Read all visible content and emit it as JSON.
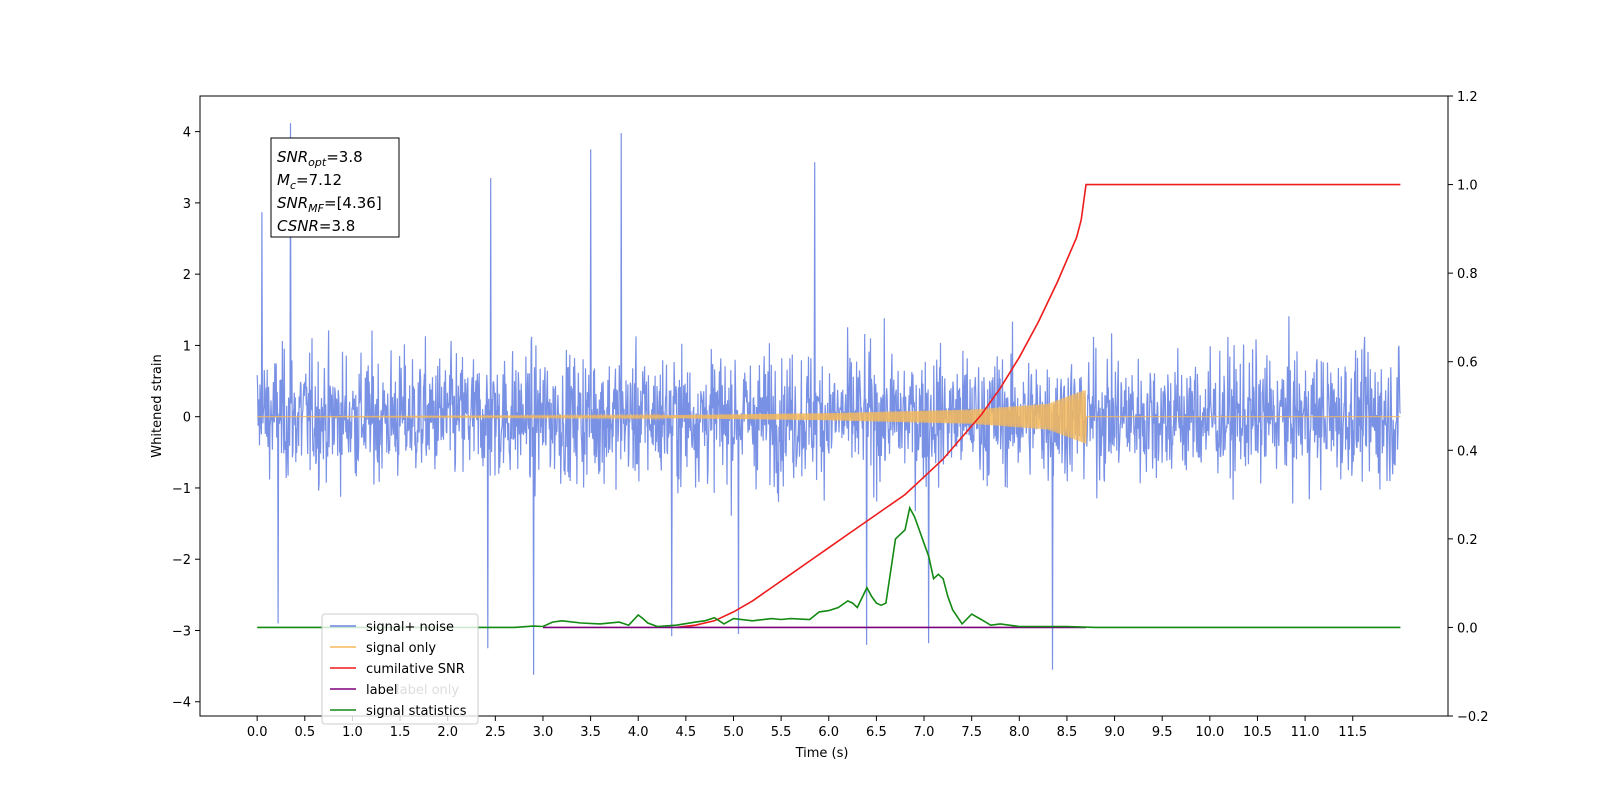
{
  "chart_data": {
    "type": "line",
    "title": "",
    "xlabel": "Time (s)",
    "ylabel_left": "Whitened strain",
    "ylabel_right": "",
    "xlim": [
      -0.6,
      12.5
    ],
    "ylim_left": [
      -4.2,
      4.5
    ],
    "ylim_right": [
      -0.2,
      1.2
    ],
    "x_ticks": [
      "0.0",
      "0.5",
      "1.0",
      "1.5",
      "2.0",
      "2.5",
      "3.0",
      "3.5",
      "4.0",
      "4.5",
      "5.0",
      "5.5",
      "6.0",
      "6.5",
      "7.0",
      "7.5",
      "8.0",
      "8.5",
      "9.0",
      "9.5",
      "10.0",
      "10.5",
      "11.0",
      "11.5"
    ],
    "y_ticks_left": [
      -4,
      -3,
      -2,
      -1,
      0,
      1,
      2,
      3,
      4
    ],
    "y_ticks_left_labels": [
      "−4",
      "−3",
      "−2",
      "−1",
      "0",
      "1",
      "2",
      "3",
      "4"
    ],
    "y_ticks_right": [
      -0.2,
      0.0,
      0.2,
      0.4,
      0.6,
      0.8,
      1.0,
      1.2
    ],
    "y_ticks_right_labels": [
      "−0.2",
      "0.0",
      "0.2",
      "0.4",
      "0.6",
      "0.8",
      "1.0",
      "1.2"
    ],
    "grid": false,
    "legend_position": "lower-left",
    "series": [
      {
        "name": "signal+ noise",
        "axis": "left",
        "color": "#6a85e2",
        "kind": "noise",
        "x_range": [
          0.0,
          12.0
        ],
        "typical_amplitude": [
          -1.6,
          1.7
        ],
        "peaks": [
          {
            "x": 0.35,
            "y": 4.12
          },
          {
            "x": 3.82,
            "y": 3.98
          },
          {
            "x": 3.5,
            "y": 3.75
          },
          {
            "x": 5.85,
            "y": 3.57
          },
          {
            "x": 2.45,
            "y": 3.35
          },
          {
            "x": 0.05,
            "y": 2.87
          },
          {
            "x": 2.9,
            "y": -3.62
          },
          {
            "x": 2.42,
            "y": -3.25
          },
          {
            "x": 6.4,
            "y": -3.2
          },
          {
            "x": 7.05,
            "y": -3.18
          },
          {
            "x": 8.35,
            "y": -3.55
          },
          {
            "x": 4.35,
            "y": -3.08
          },
          {
            "x": 5.05,
            "y": -3.05
          },
          {
            "x": 0.22,
            "y": -2.9
          }
        ]
      },
      {
        "name": "signal only",
        "axis": "left",
        "color": "#f5b95a",
        "kind": "chirp",
        "x_range": [
          0.0,
          12.0
        ],
        "chirp_end": 8.7,
        "envelope_at": [
          [
            0.0,
            0.0
          ],
          [
            4.0,
            0.015
          ],
          [
            6.0,
            0.05
          ],
          [
            7.5,
            0.1
          ],
          [
            8.3,
            0.18
          ],
          [
            8.7,
            0.38
          ]
        ]
      },
      {
        "name": "cumilative SNR",
        "axis": "right",
        "color": "#ee1c1c",
        "kind": "line",
        "x": [
          4.4,
          4.6,
          4.8,
          5.0,
          5.2,
          5.4,
          5.6,
          5.8,
          6.0,
          6.2,
          6.4,
          6.6,
          6.8,
          7.0,
          7.2,
          7.4,
          7.6,
          7.8,
          8.0,
          8.2,
          8.4,
          8.5,
          8.6,
          8.65,
          8.7,
          9.0,
          10.0,
          11.0,
          12.0
        ],
        "y": [
          0.0,
          0.005,
          0.015,
          0.035,
          0.06,
          0.09,
          0.12,
          0.15,
          0.18,
          0.21,
          0.24,
          0.27,
          0.3,
          0.34,
          0.38,
          0.43,
          0.48,
          0.54,
          0.61,
          0.69,
          0.78,
          0.83,
          0.88,
          0.92,
          1.0,
          1.0,
          1.0,
          1.0,
          1.0
        ]
      },
      {
        "name": "label",
        "axis": "right",
        "color": "#7b007b",
        "kind": "line",
        "x": [
          3.0,
          8.7
        ],
        "y": [
          0.0,
          0.0
        ]
      },
      {
        "name": "signal statistics",
        "axis": "right",
        "color": "#138a13",
        "kind": "line",
        "x": [
          0.0,
          2.7,
          2.9,
          3.0,
          3.1,
          3.2,
          3.4,
          3.6,
          3.8,
          3.9,
          4.0,
          4.05,
          4.1,
          4.2,
          4.4,
          4.6,
          4.7,
          4.8,
          4.9,
          5.0,
          5.2,
          5.4,
          5.5,
          5.6,
          5.8,
          5.9,
          6.0,
          6.1,
          6.2,
          6.25,
          6.3,
          6.4,
          6.45,
          6.5,
          6.55,
          6.6,
          6.7,
          6.75,
          6.8,
          6.85,
          6.9,
          6.95,
          7.0,
          7.05,
          7.1,
          7.15,
          7.2,
          7.25,
          7.3,
          7.4,
          7.5,
          7.6,
          7.7,
          7.8,
          8.0,
          8.5,
          8.8,
          12.0
        ],
        "y": [
          0.0,
          0.0,
          0.003,
          0.002,
          0.012,
          0.015,
          0.01,
          0.008,
          0.012,
          0.005,
          0.028,
          0.02,
          0.01,
          0.002,
          0.005,
          0.012,
          0.015,
          0.022,
          0.008,
          0.02,
          0.015,
          0.02,
          0.018,
          0.02,
          0.018,
          0.035,
          0.038,
          0.045,
          0.06,
          0.055,
          0.045,
          0.09,
          0.07,
          0.055,
          0.05,
          0.055,
          0.2,
          0.21,
          0.22,
          0.27,
          0.25,
          0.22,
          0.19,
          0.16,
          0.11,
          0.12,
          0.11,
          0.07,
          0.04,
          0.008,
          0.03,
          0.018,
          0.005,
          0.008,
          0.002,
          0.002,
          0.0,
          0.0
        ]
      }
    ],
    "legend_entries": [
      "signal+ noise",
      "signal only",
      "cumilative SNR",
      "label",
      "signal statistics"
    ],
    "legend_hidden_text": "signal only",
    "legend_hidden_text_2": "signal statistics",
    "legend_hidden_text_3": "label only",
    "annotation": {
      "lines": [
        {
          "name": "SNR",
          "sub": "opt",
          "value": "=3.8"
        },
        {
          "name": "M",
          "sub": "c",
          "value": "=7.12"
        },
        {
          "name": "SNR",
          "sub": "MF",
          "value": "=[4.36]"
        },
        {
          "name": "CSNR",
          "sub": "",
          "value": "=3.8"
        }
      ]
    }
  }
}
